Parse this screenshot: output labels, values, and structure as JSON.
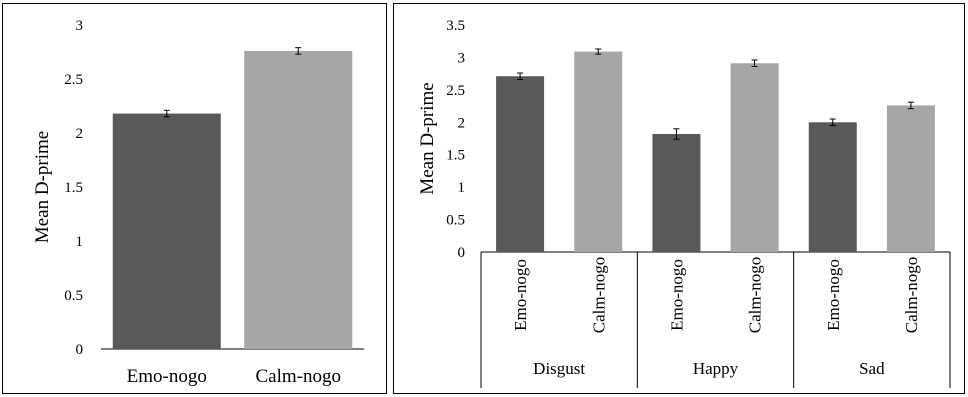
{
  "colors": {
    "emo": "#595959",
    "calm": "#a6a6a6",
    "axis": "#000000"
  },
  "chart_data": [
    {
      "type": "bar",
      "ylabel": "Mean D-prime",
      "ylim": [
        0,
        3
      ],
      "yticks": [
        "0",
        "0.5",
        "1",
        "1.5",
        "2",
        "2.5",
        "3"
      ],
      "categories": [
        "Emo-nogo",
        "Calm-nogo"
      ],
      "values": [
        2.18,
        2.76
      ],
      "errors": [
        0.03,
        0.03
      ],
      "grid": false
    },
    {
      "type": "bar",
      "ylabel": "Mean D-prime",
      "ylim": [
        0,
        3.5
      ],
      "yticks": [
        "0",
        "0.5",
        "1",
        "1.5",
        "2",
        "2.5",
        "3",
        "3.5"
      ],
      "groups": [
        "Disgust",
        "Happy",
        "Sad"
      ],
      "subcategories": [
        "Emo-nogo",
        "Calm-nogo"
      ],
      "values": [
        [
          2.71,
          3.09
        ],
        [
          1.82,
          2.91
        ],
        [
          2.0,
          2.26
        ]
      ],
      "errors": [
        [
          0.05,
          0.04
        ],
        [
          0.08,
          0.05
        ],
        [
          0.05,
          0.05
        ]
      ],
      "grid": false
    }
  ]
}
